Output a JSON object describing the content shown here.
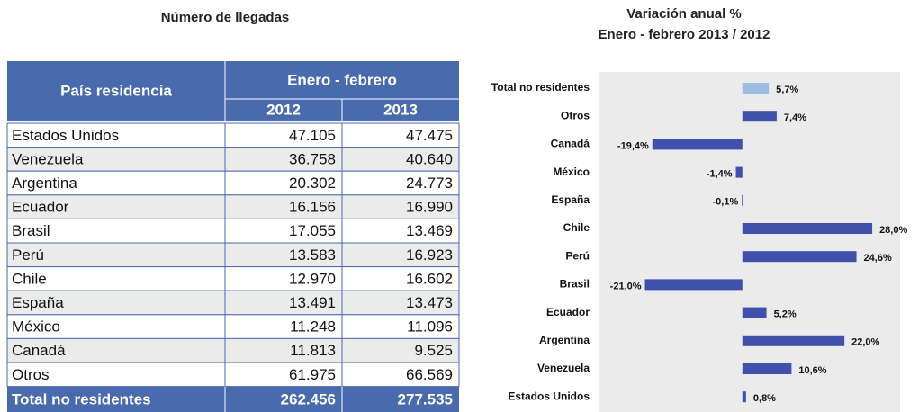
{
  "table": {
    "title": "Número de llegadas",
    "header": {
      "country": "País residencia",
      "period": "Enero - febrero",
      "years": [
        "2012",
        "2013"
      ]
    },
    "rows": [
      [
        "Estados Unidos",
        "47.105",
        "47.475"
      ],
      [
        "Venezuela",
        "36.758",
        "40.640"
      ],
      [
        "Argentina",
        "20.302",
        "24.773"
      ],
      [
        "Ecuador",
        "16.156",
        "16.990"
      ],
      [
        "Brasil",
        "17.055",
        "13.469"
      ],
      [
        "Perú",
        "13.583",
        "16.923"
      ],
      [
        "Chile",
        "12.970",
        "16.602"
      ],
      [
        "España",
        "13.491",
        "13.473"
      ],
      [
        "México",
        "11.248",
        "11.096"
      ],
      [
        "Canadá",
        "11.813",
        "9.525"
      ],
      [
        "Otros",
        "61.975",
        "66.569"
      ]
    ],
    "total": [
      "Total no residentes",
      "262.456",
      "277.535"
    ]
  },
  "chart_data": {
    "type": "hbar",
    "title": "Variación anual %",
    "subtitle": "Enero - febrero 2013 / 2012",
    "categories": [
      "Total no residentes",
      "Otros",
      "Canadá",
      "México",
      "España",
      "Chile",
      "Perú",
      "Brasil",
      "Ecuador",
      "Argentina",
      "Venezuela",
      "Estados Unidos"
    ],
    "values": [
      5.7,
      7.4,
      -19.4,
      -1.4,
      -0.1,
      28.0,
      24.6,
      -21.0,
      5.2,
      22.0,
      10.6,
      0.8
    ],
    "value_labels": [
      "5,7%",
      "7,4%",
      "-19,4%",
      "-1,4%",
      "-0,1%",
      "28,0%",
      "24,6%",
      "-21,0%",
      "5,2%",
      "22,0%",
      "10,6%",
      "0,8%"
    ],
    "colors": [
      "#9dbde3",
      "#3f51ab",
      "#3f51ab",
      "#3f51ab",
      "#3f51ab",
      "#3f51ab",
      "#3f51ab",
      "#3f51ab",
      "#3f51ab",
      "#3f51ab",
      "#3f51ab",
      "#3f51ab"
    ],
    "xlim": [
      -31,
      34
    ]
  }
}
